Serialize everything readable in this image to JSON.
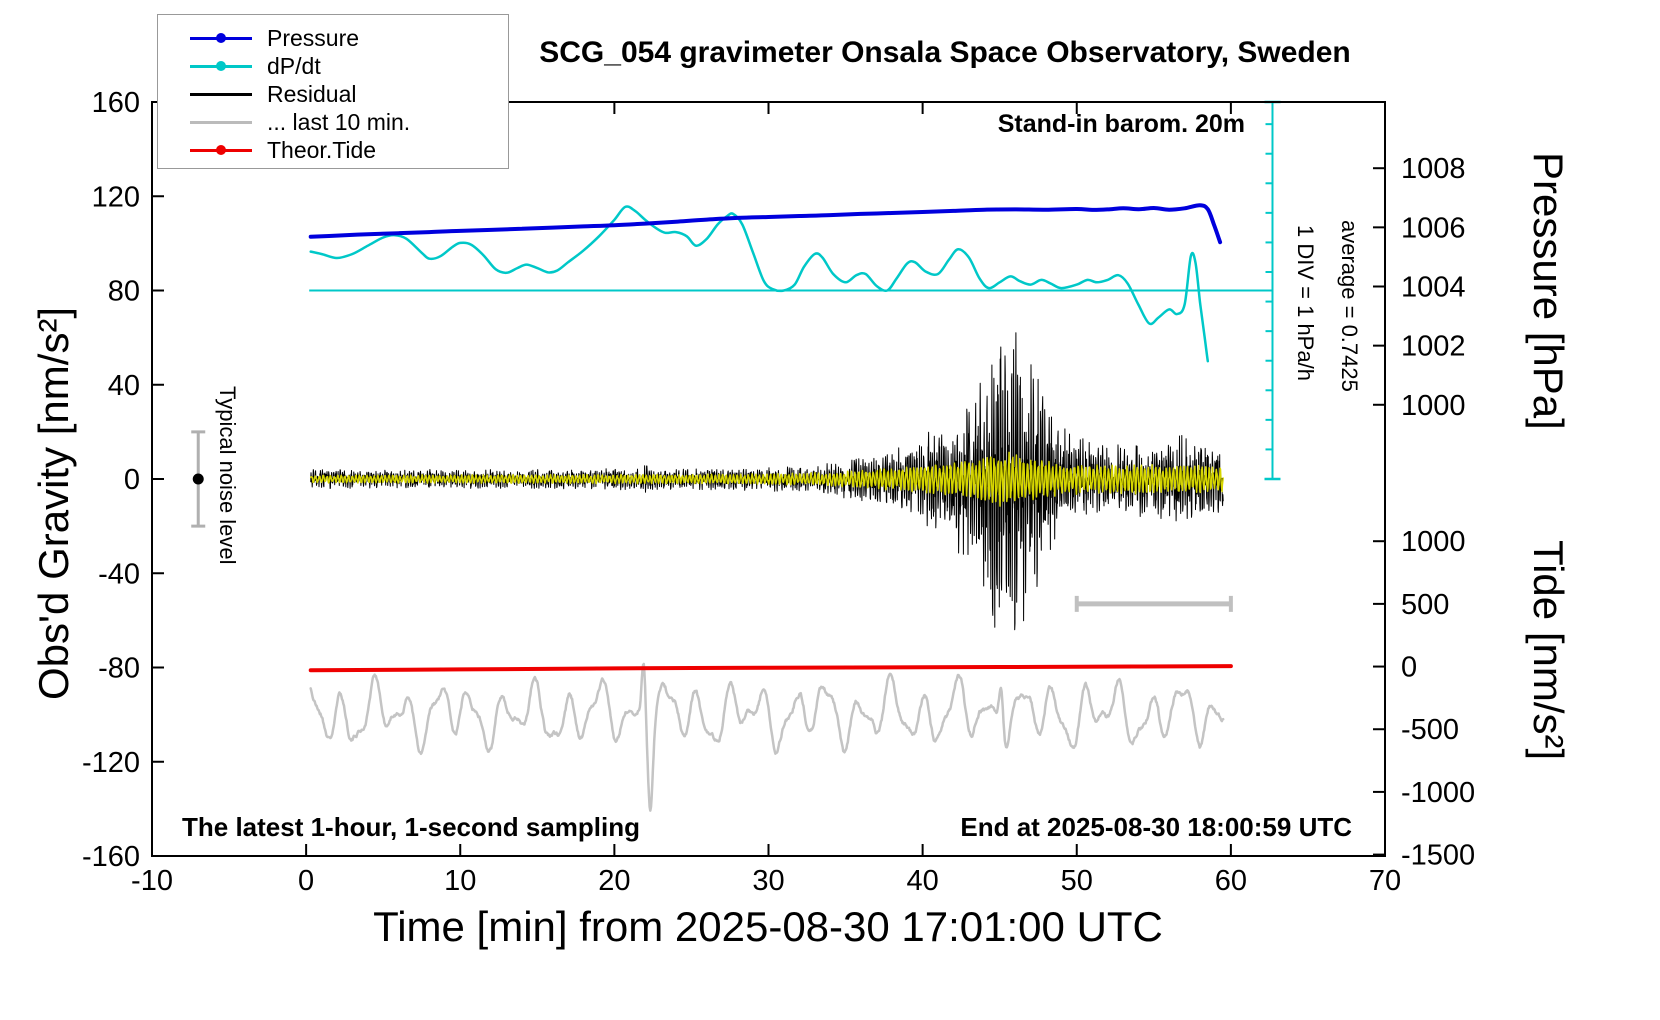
{
  "title": "SCG_054 gravimeter Onsala Space Observatory, Sweden",
  "annotations": {
    "barom": "Stand-in barom. 20m",
    "div_scale": "1 DIV = 1 hPa/h",
    "average": "average = 0.7425",
    "noise_level": "Typical noise level",
    "sampling": "The latest 1-hour, 1-second sampling",
    "end_time": "End at 2025-08-30 18:00:59 UTC"
  },
  "axes": {
    "x_label": "Time [min] from 2025-08-30 17:01:00 UTC",
    "y_left_label": "Obs'd Gravity [nm/s²]",
    "y_right_top_label": "Pressure [hPa]",
    "y_right_bottom_label": "Tide [nm/s²]"
  },
  "legend": [
    {
      "label": "Pressure",
      "color": "#0000dd",
      "dot": true
    },
    {
      "label": "dP/dt",
      "color": "#00c8c8",
      "dot": true
    },
    {
      "label": "Residual",
      "color": "#000000",
      "dot": false
    },
    {
      "label": "... last 10 min.",
      "color": "#bbbbbb",
      "dot": false
    },
    {
      "label": "Theor.Tide",
      "color": "#ee0000",
      "dot": true
    }
  ],
  "chart_data": {
    "type": "line",
    "title": "SCG_054 gravimeter Onsala Space Observatory, Sweden",
    "xlabel": "Time [min] from 2025-08-30 17:01:00 UTC",
    "ylabel": "Obs'd Gravity [nm/s²]",
    "xlim": [
      -10,
      70
    ],
    "ylim_left": [
      -160,
      160
    ],
    "x_ticks": [
      -10,
      0,
      10,
      20,
      30,
      40,
      50,
      60,
      70
    ],
    "y_ticks_left": [
      -160,
      -120,
      -80,
      -40,
      0,
      40,
      80,
      120,
      160
    ],
    "pressure_axis": {
      "ticks": [
        1008,
        1006,
        1004,
        1002,
        1000
      ],
      "gravity_at_1004": 81.7,
      "gravity_per_hpa": 12.55
    },
    "tide_axis": {
      "ticks": [
        1000,
        500,
        0,
        -500,
        -1000,
        -1500
      ],
      "gravity_at_0": -79.6,
      "gravity_per_unit": 0.0532
    },
    "series": {
      "pressure": {
        "name": "Pressure",
        "color": "#0000dd",
        "width": 4,
        "points": [
          [
            0.3,
            102.8
          ],
          [
            2,
            103.3
          ],
          [
            4,
            103.9
          ],
          [
            6,
            104.3
          ],
          [
            8,
            104.8
          ],
          [
            10,
            105.3
          ],
          [
            12,
            105.7
          ],
          [
            14,
            106.2
          ],
          [
            16,
            106.7
          ],
          [
            18,
            107.2
          ],
          [
            20,
            107.7
          ],
          [
            22,
            108.4
          ],
          [
            24,
            109.2
          ],
          [
            26,
            110.1
          ],
          [
            28,
            110.8
          ],
          [
            30,
            111.2
          ],
          [
            32,
            111.6
          ],
          [
            34,
            112.0
          ],
          [
            36,
            112.5
          ],
          [
            38,
            112.9
          ],
          [
            40,
            113.3
          ],
          [
            42,
            113.8
          ],
          [
            44,
            114.3
          ],
          [
            46,
            114.4
          ],
          [
            48,
            114.3
          ],
          [
            50,
            114.6
          ],
          [
            51,
            114.2
          ],
          [
            52,
            114.4
          ],
          [
            53,
            114.9
          ],
          [
            54,
            114.5
          ],
          [
            55,
            115.0
          ],
          [
            56,
            114.3
          ],
          [
            57,
            114.9
          ],
          [
            58.0,
            116.2
          ],
          [
            58.5,
            114.5
          ],
          [
            58.9,
            108.0
          ],
          [
            59.3,
            100.5
          ]
        ]
      },
      "dpdt": {
        "name": "dP/dt",
        "color": "#00c8c8",
        "width": 2.5,
        "points": [
          [
            0.3,
            96.5
          ],
          [
            1,
            95.5
          ],
          [
            2,
            93.8
          ],
          [
            3,
            95.5
          ],
          [
            4,
            99
          ],
          [
            5,
            102.5
          ],
          [
            5.7,
            103.5
          ],
          [
            6.5,
            102
          ],
          [
            7.5,
            96
          ],
          [
            8,
            93.5
          ],
          [
            8.7,
            94.5
          ],
          [
            9.5,
            98.5
          ],
          [
            10,
            100.2
          ],
          [
            10.7,
            99.5
          ],
          [
            11.5,
            95
          ],
          [
            12.3,
            89
          ],
          [
            13,
            87.5
          ],
          [
            13.7,
            89.5
          ],
          [
            14.3,
            91
          ],
          [
            15,
            89.5
          ],
          [
            15.7,
            87.7
          ],
          [
            16.3,
            88.5
          ],
          [
            17,
            92
          ],
          [
            18,
            97
          ],
          [
            19,
            103
          ],
          [
            20,
            110
          ],
          [
            20.7,
            115.5
          ],
          [
            21.3,
            114
          ],
          [
            22,
            110
          ],
          [
            22.7,
            106.5
          ],
          [
            23.3,
            104.5
          ],
          [
            24,
            104.8
          ],
          [
            24.7,
            103
          ],
          [
            25.3,
            99
          ],
          [
            26,
            102
          ],
          [
            26.7,
            108
          ],
          [
            27.3,
            111.5
          ],
          [
            27.7,
            112.5
          ],
          [
            28.3,
            108
          ],
          [
            29,
            96
          ],
          [
            29.7,
            84
          ],
          [
            30.3,
            80.5
          ],
          [
            31,
            80
          ],
          [
            31.7,
            82.5
          ],
          [
            32.3,
            90
          ],
          [
            33,
            95.5
          ],
          [
            33.5,
            94
          ],
          [
            34.2,
            87
          ],
          [
            35,
            83.5
          ],
          [
            35.7,
            86.5
          ],
          [
            36.3,
            87
          ],
          [
            37,
            82
          ],
          [
            37.7,
            80
          ],
          [
            38.3,
            85
          ],
          [
            39,
            91.5
          ],
          [
            39.5,
            92
          ],
          [
            40.2,
            88
          ],
          [
            41,
            87
          ],
          [
            41.7,
            93
          ],
          [
            42.3,
            97.5
          ],
          [
            43,
            94
          ],
          [
            43.7,
            85
          ],
          [
            44.3,
            81
          ],
          [
            45,
            83.5
          ],
          [
            45.7,
            86
          ],
          [
            46.3,
            84
          ],
          [
            47,
            82.5
          ],
          [
            47.7,
            84.5
          ],
          [
            48.3,
            83
          ],
          [
            49,
            81
          ],
          [
            50,
            82.5
          ],
          [
            50.7,
            84.5
          ],
          [
            51.3,
            83.5
          ],
          [
            52,
            84.5
          ],
          [
            52.7,
            86.5
          ],
          [
            53.3,
            83
          ],
          [
            54,
            74
          ],
          [
            54.7,
            66
          ],
          [
            55.3,
            68.5
          ],
          [
            56,
            72
          ],
          [
            56.5,
            70
          ],
          [
            57,
            74
          ],
          [
            57.4,
            94.5
          ],
          [
            57.7,
            92
          ],
          [
            58,
            75
          ],
          [
            58.3,
            60
          ],
          [
            58.5,
            50
          ]
        ]
      },
      "theor_tide": {
        "name": "Theor.Tide",
        "color": "#ee0000",
        "width": 4,
        "points": [
          [
            0.3,
            -81.2
          ],
          [
            10,
            -80.8
          ],
          [
            20,
            -80.4
          ],
          [
            30,
            -80.1
          ],
          [
            40,
            -79.9
          ],
          [
            50,
            -79.7
          ],
          [
            60,
            -79.4
          ]
        ]
      },
      "residual": {
        "name": "Residual",
        "color": "#000000",
        "width": 1,
        "seed": 7,
        "n": 3200,
        "range": [
          0.3,
          59.5
        ],
        "ph_inc": 0.55,
        "ph_jit": 0.5,
        "osc": 0.5,
        "noise": 1.35,
        "envelope": [
          [
            0,
            3.5
          ],
          [
            5,
            3.5
          ],
          [
            10,
            3.5
          ],
          [
            15,
            3.5
          ],
          [
            20,
            4
          ],
          [
            21.8,
            4
          ],
          [
            22,
            6
          ],
          [
            22.3,
            4
          ],
          [
            28,
            4
          ],
          [
            30,
            4.5
          ],
          [
            32,
            5
          ],
          [
            34,
            6
          ],
          [
            35,
            7
          ],
          [
            36,
            9
          ],
          [
            37,
            9
          ],
          [
            38,
            11
          ],
          [
            39,
            12
          ],
          [
            40,
            15
          ],
          [
            40.5,
            20
          ],
          [
            41,
            18
          ],
          [
            41.5,
            16
          ],
          [
            42,
            22
          ],
          [
            42.5,
            30
          ],
          [
            43,
            28
          ],
          [
            43.5,
            35
          ],
          [
            44,
            45
          ],
          [
            44.5,
            55
          ],
          [
            45,
            62
          ],
          [
            45.5,
            58
          ],
          [
            46,
            63
          ],
          [
            46.5,
            55
          ],
          [
            47,
            45
          ],
          [
            47.5,
            38
          ],
          [
            48,
            30
          ],
          [
            48.5,
            24
          ],
          [
            49,
            20
          ],
          [
            49.5,
            18
          ],
          [
            50,
            16
          ],
          [
            51,
            13
          ],
          [
            52,
            12
          ],
          [
            53,
            14
          ],
          [
            53.5,
            12
          ],
          [
            54,
            16
          ],
          [
            54.5,
            13
          ],
          [
            55,
            12
          ],
          [
            55.5,
            16
          ],
          [
            56,
            14
          ],
          [
            56.5,
            18
          ],
          [
            57,
            16
          ],
          [
            57.5,
            14
          ],
          [
            58,
            16
          ],
          [
            58.5,
            13
          ],
          [
            59,
            15
          ],
          [
            59.5,
            13
          ]
        ]
      },
      "residual_filtered": {
        "name": "Residual filtered",
        "color": "#d6d600",
        "width": 1.5,
        "seed": 13,
        "n": 2400,
        "range": [
          0.3,
          59.5
        ],
        "ph_inc": 0.5,
        "ph_jit": 0.3,
        "osc": 0.75,
        "noise": 0.5,
        "envelope": [
          [
            0,
            1.8
          ],
          [
            10,
            1.8
          ],
          [
            20,
            2
          ],
          [
            30,
            2.2
          ],
          [
            34,
            3
          ],
          [
            36,
            4
          ],
          [
            38,
            5
          ],
          [
            40,
            6
          ],
          [
            42,
            7
          ],
          [
            43,
            8
          ],
          [
            44,
            10
          ],
          [
            45,
            12
          ],
          [
            46,
            11
          ],
          [
            47,
            9
          ],
          [
            48,
            8
          ],
          [
            49,
            7
          ],
          [
            50,
            6.5
          ],
          [
            52,
            6
          ],
          [
            54,
            6.5
          ],
          [
            56,
            6
          ],
          [
            58,
            6
          ],
          [
            59.5,
            5.5
          ]
        ]
      },
      "gray_low": {
        "name": "... last 10 min.",
        "color": "#c4c4c4",
        "width": 2.5,
        "base": -100,
        "range": [
          0.3,
          59.5
        ],
        "n": 1400,
        "seed": 21,
        "noise_amp": 2,
        "sines": [
          [
            2.1,
            9,
            1.0
          ],
          [
            4.7,
            5,
            1.3
          ],
          [
            1.15,
            4,
            2.1
          ]
        ],
        "spikes": [
          [
            21.9,
            0.18,
            28
          ],
          [
            22.35,
            0.2,
            -26
          ],
          [
            45.1,
            0.2,
            22
          ]
        ]
      }
    },
    "extras": {
      "cyan_hline": {
        "y": 80,
        "x1": 0.2,
        "x2": 62.7,
        "color": "#00c8c8"
      },
      "cyan_vline": {
        "x": 62.7,
        "y1": 0,
        "y2": 160,
        "tick_step": 12.55,
        "color": "#00c8c8"
      },
      "gray_bar": {
        "x1": 50,
        "x2": 60,
        "y": -53,
        "color": "#c0c0c0"
      },
      "noise_marker": {
        "x": -7,
        "y": 0,
        "half_span": 20,
        "bar_color": "#b0b0b0",
        "dot_color": "#000000"
      }
    },
    "grid": false,
    "legend_position": "top-left"
  }
}
